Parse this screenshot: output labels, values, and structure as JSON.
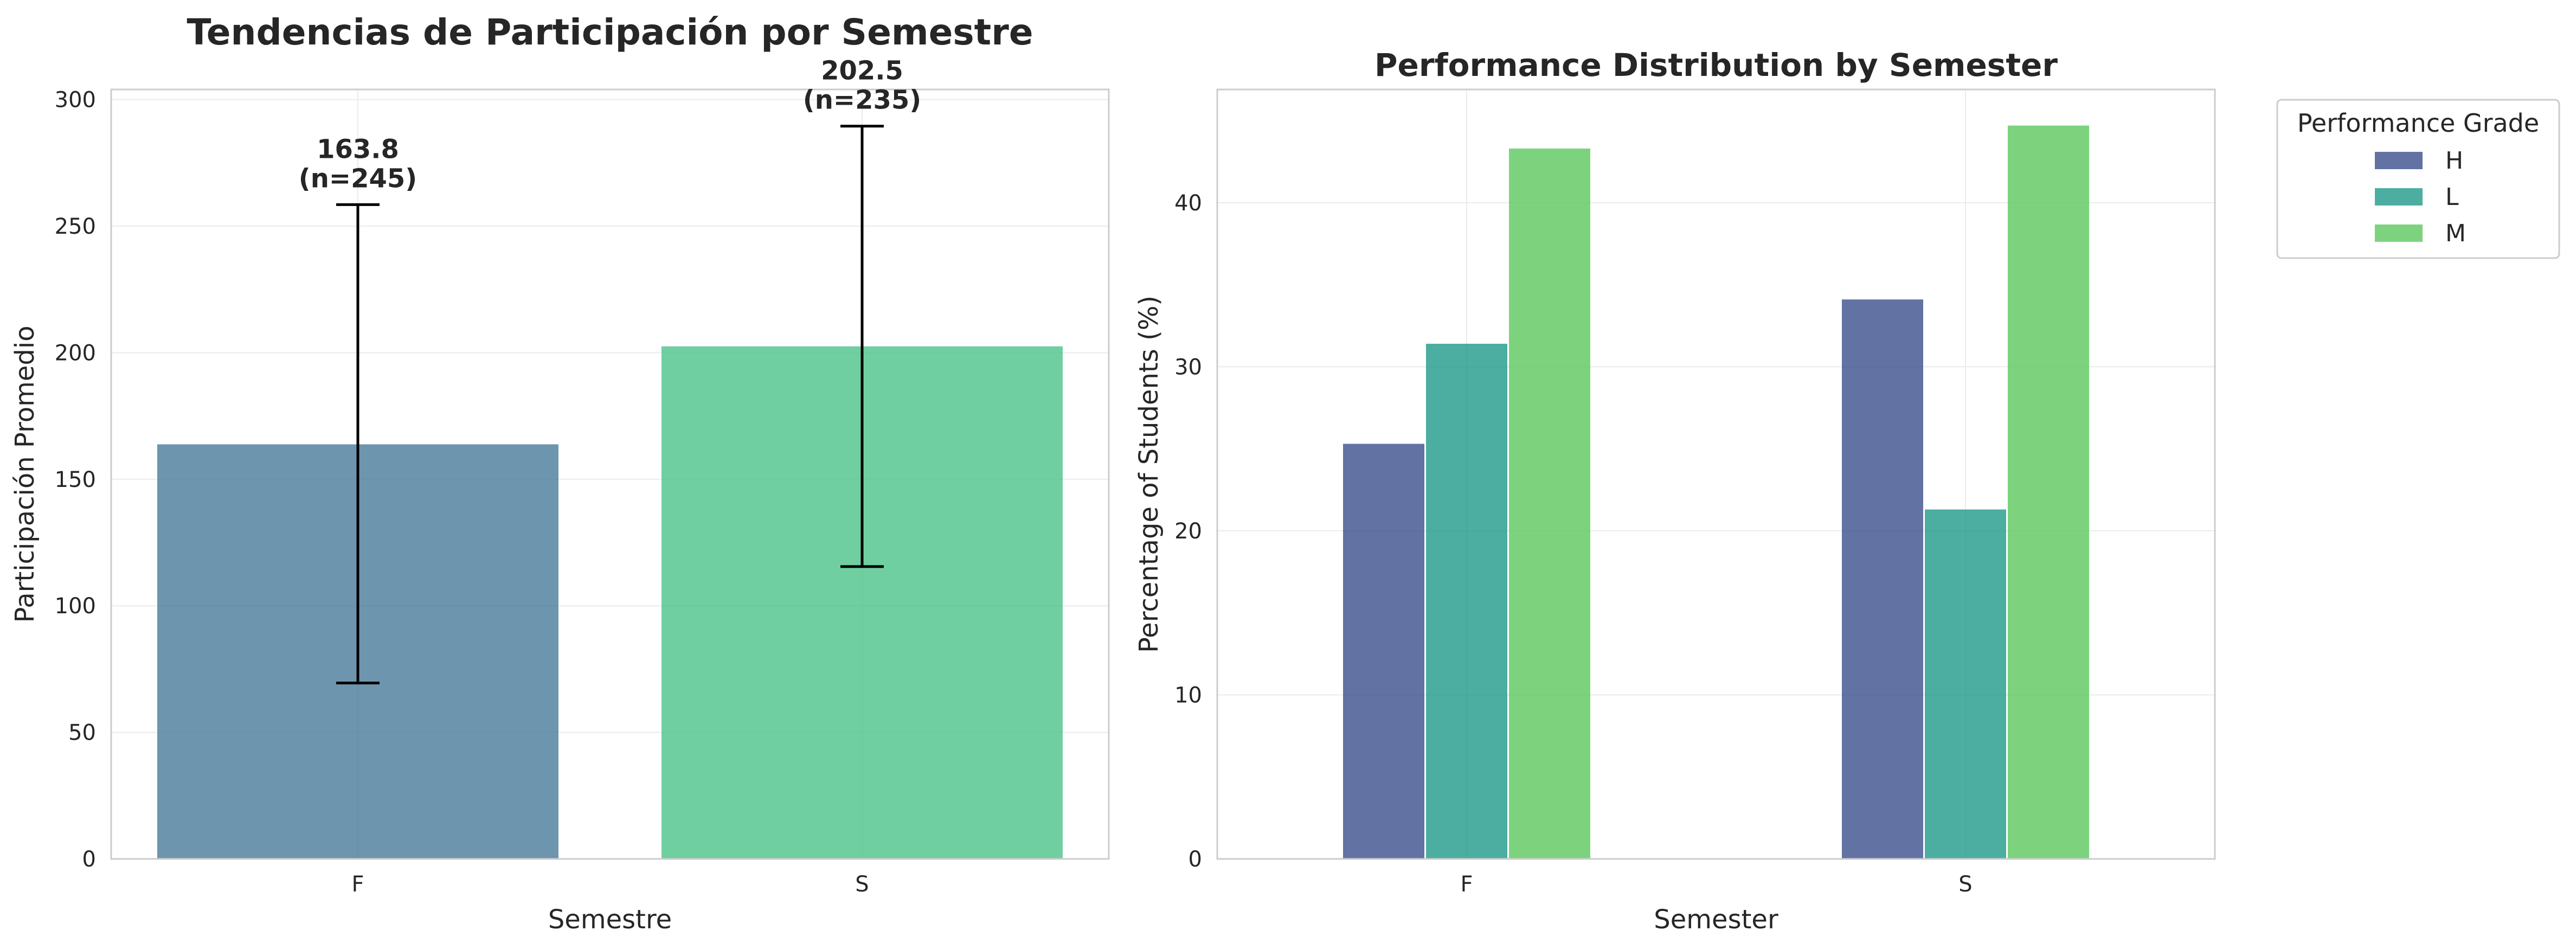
{
  "colors": {
    "left_F": "#4a7a9a",
    "left_S": "#4cc38a",
    "H": "#3b4f8c",
    "L": "#1f9a8a",
    "M": "#5cc85c",
    "grid": "#ebebeb",
    "axes": "#cccccc",
    "text": "#262626",
    "errorbar": "#000000"
  },
  "chart_data": [
    {
      "type": "bar",
      "title": "Tendencias de Participación por Semestre",
      "xlabel": "Semestre",
      "ylabel": "Participación Promedio",
      "categories": [
        "F",
        "S"
      ],
      "values": [
        163.8,
        202.5
      ],
      "error_low": [
        69.5,
        115.5
      ],
      "error_high": [
        258.5,
        289.5
      ],
      "annotations": [
        {
          "line1": "163.8",
          "line2": "(n=245)"
        },
        {
          "line1": "202.5",
          "line2": "(n=235)"
        }
      ],
      "ylim": [
        0,
        304
      ],
      "yticks": [
        0,
        50,
        100,
        150,
        200,
        250,
        300
      ],
      "grid": true,
      "legend": "none"
    },
    {
      "type": "bar",
      "title": "Performance Distribution by Semester",
      "xlabel": "Semester",
      "ylabel": "Percentage of Students (%)",
      "categories": [
        "F",
        "S"
      ],
      "series": [
        {
          "name": "H",
          "values": [
            25.3,
            34.1
          ]
        },
        {
          "name": "L",
          "values": [
            31.4,
            21.3
          ]
        },
        {
          "name": "M",
          "values": [
            43.3,
            44.7
          ]
        }
      ],
      "ylim": [
        0,
        46.9
      ],
      "yticks": [
        0,
        10,
        20,
        30,
        40
      ],
      "grid": true,
      "legend_title": "Performance Grade",
      "legend": "outside-top-right"
    }
  ]
}
